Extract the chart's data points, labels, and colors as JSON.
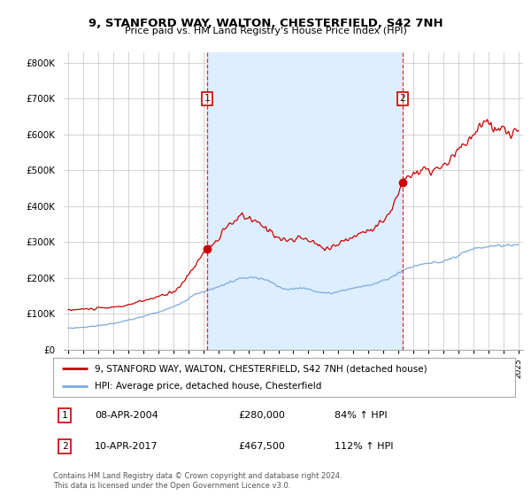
{
  "title": "9, STANFORD WAY, WALTON, CHESTERFIELD, S42 7NH",
  "subtitle": "Price paid vs. HM Land Registry's House Price Index (HPI)",
  "ytick_values": [
    0,
    100000,
    200000,
    300000,
    400000,
    500000,
    600000,
    700000,
    800000
  ],
  "ylim": [
    0,
    830000
  ],
  "xlim_start": 1994.7,
  "xlim_end": 2025.3,
  "background_color": "#ffffff",
  "plot_bg_color": "#ffffff",
  "grid_color": "#cccccc",
  "red_line_color": "#cc0000",
  "blue_line_color": "#7aaadd",
  "shade_color": "#ddeeff",
  "purchase1_x": 2004.27,
  "purchase1_y": 280000,
  "purchase2_x": 2017.27,
  "purchase2_y": 467500,
  "legend_entries": [
    "9, STANFORD WAY, WALTON, CHESTERFIELD, S42 7NH (detached house)",
    "HPI: Average price, detached house, Chesterfield"
  ],
  "annotation1_date": "08-APR-2004",
  "annotation1_price": "£280,000",
  "annotation1_hpi": "84% ↑ HPI",
  "annotation2_date": "10-APR-2017",
  "annotation2_price": "£467,500",
  "annotation2_hpi": "112% ↑ HPI",
  "footer": "Contains HM Land Registry data © Crown copyright and database right 2024.\nThis data is licensed under the Open Government Licence v3.0."
}
